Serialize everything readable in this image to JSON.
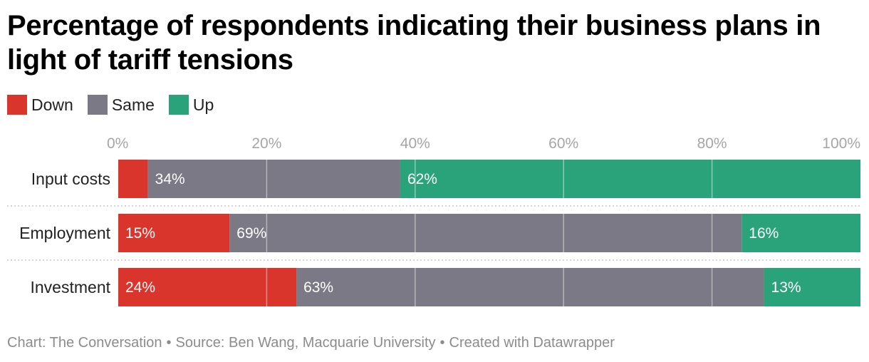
{
  "title": "Percentage of respondents indicating their business plans in light of tariff tensions",
  "legend": [
    {
      "label": "Down",
      "color": "#d9352c"
    },
    {
      "label": "Same",
      "color": "#7a7985"
    },
    {
      "label": "Up",
      "color": "#2aa37a"
    }
  ],
  "chart_data": {
    "type": "bar",
    "orientation": "horizontal",
    "stacked": true,
    "categories": [
      "Input costs",
      "Employment",
      "Investment"
    ],
    "series": [
      {
        "name": "Down",
        "values": [
          4,
          15,
          24
        ],
        "labels": [
          "",
          "15%",
          "24%"
        ],
        "color": "#d9352c"
      },
      {
        "name": "Same",
        "values": [
          34,
          69,
          63
        ],
        "labels": [
          "34%",
          "69%",
          "63%"
        ],
        "color": "#7a7985"
      },
      {
        "name": "Up",
        "values": [
          62,
          16,
          13
        ],
        "labels": [
          "62%",
          "16%",
          "13%"
        ],
        "color": "#2aa37a"
      }
    ],
    "x_ticks": [
      "0%",
      "20%",
      "40%",
      "60%",
      "80%",
      "100%"
    ],
    "xlim": [
      0,
      100
    ],
    "grid": true,
    "legend_position": "top-left"
  },
  "footer": {
    "chart_credit": "Chart: The Conversation",
    "source": "Source: Ben Wang, Macquarie University",
    "created_with": "Created with Datawrapper",
    "separator": "•"
  }
}
